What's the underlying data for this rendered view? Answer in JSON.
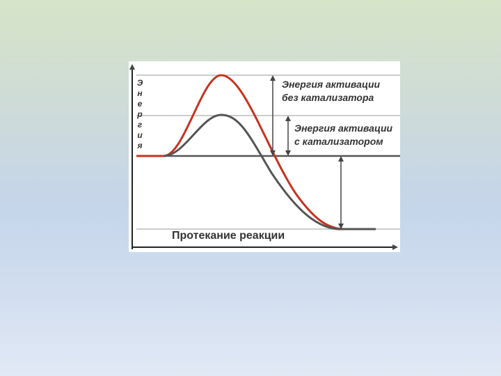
{
  "diagram": {
    "y_axis_label": "Энергия",
    "x_axis_label": "Протекание реакции",
    "annotations": [
      {
        "lines": [
          "Энергия активации",
          "без катализатора"
        ]
      },
      {
        "lines": [
          "Энергия активации",
          "с катализатором"
        ]
      }
    ]
  }
}
